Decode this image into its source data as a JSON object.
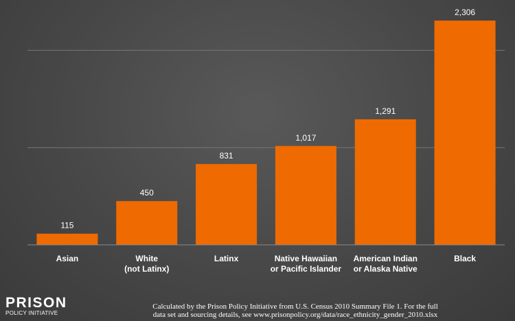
{
  "chart_data": {
    "type": "bar",
    "categories": [
      [
        "Asian"
      ],
      [
        "White",
        "(not Latinx)"
      ],
      [
        "Latinx"
      ],
      [
        "Native Hawaiian",
        "or Pacific Islander"
      ],
      [
        "American Indian",
        "or Alaska Native"
      ],
      [
        "Black"
      ]
    ],
    "values": [
      115,
      450,
      831,
      1017,
      1291,
      2306
    ],
    "value_labels": [
      "115",
      "450",
      "831",
      "1,017",
      "1,291",
      "2,306"
    ],
    "ylim": [
      0,
      2500
    ],
    "gridlines": [
      1000,
      2000
    ],
    "grid": true,
    "bar_color": "#ef6a00",
    "background_color": "#4a4a4a",
    "title": "",
    "xlabel": "",
    "ylabel": ""
  },
  "logo": {
    "line1": "PRISON",
    "line2": "POLICY INITIATIVE"
  },
  "footnote": {
    "line1": "Calculated by the Prison Policy Initiative from U.S. Census 2010 Summary File 1. For the full",
    "line2": "data set and sourcing details, see www.prisonpolicy.org/data/race_ethnicity_gender_2010.xlsx"
  }
}
